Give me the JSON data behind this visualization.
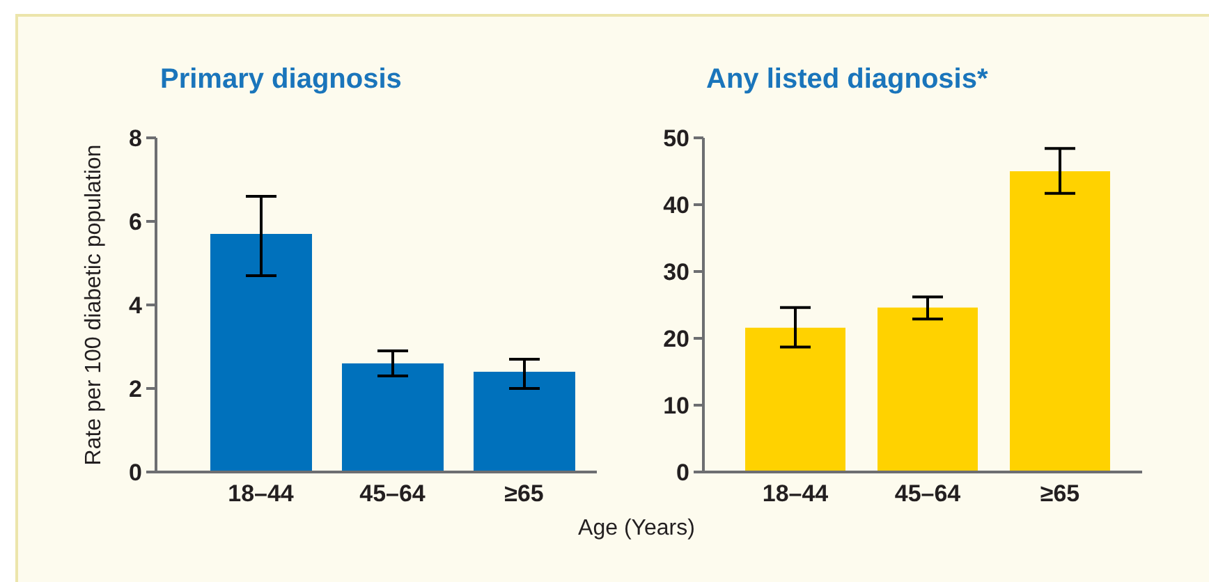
{
  "chart_data": [
    {
      "type": "bar",
      "title": "Primary diagnosis",
      "ylabel": "Rate per 100 diabetic population",
      "xlabel": "Age (Years)",
      "categories": [
        "18–44",
        "45–64",
        "≥65"
      ],
      "values": [
        5.7,
        2.6,
        2.4
      ],
      "errors": [
        [
          4.7,
          6.6
        ],
        [
          2.3,
          2.9
        ],
        [
          2.0,
          2.7
        ]
      ],
      "color": "#0071bc",
      "ylim": [
        0,
        8
      ],
      "yticks": [
        0,
        2,
        4,
        6,
        8
      ]
    },
    {
      "type": "bar",
      "title": "Any listed diagnosis*",
      "categories": [
        "18–44",
        "45–64",
        "≥65"
      ],
      "values": [
        21.6,
        24.6,
        45.0
      ],
      "errors": [
        [
          18.7,
          24.6
        ],
        [
          22.9,
          26.2
        ],
        [
          41.7,
          48.4
        ]
      ],
      "color": "#ffd200",
      "ylim": [
        0,
        50
      ],
      "yticks": [
        0,
        10,
        20,
        30,
        40,
        50
      ]
    }
  ]
}
